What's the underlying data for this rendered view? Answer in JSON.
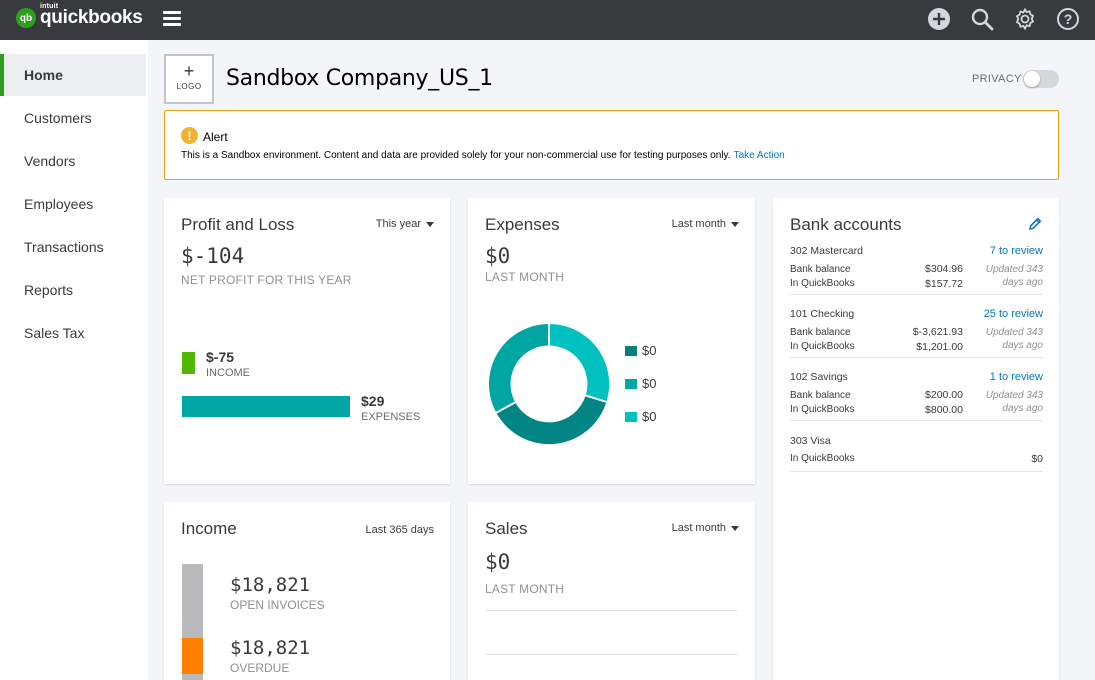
{
  "brand": {
    "badge": "qb",
    "intuit": "intuit",
    "name": "quickbooks"
  },
  "colors": {
    "topbar": "#393a3d",
    "brand_green": "#2ca01c",
    "teal": "#00a6a4",
    "link": "#0077c5",
    "alert_border": "#e8a317",
    "overdue": "#ff8000"
  },
  "topbar_icons": [
    "plus-circle-icon",
    "search-icon",
    "gear-icon",
    "help-icon"
  ],
  "sidebar": {
    "items": [
      {
        "label": "Home",
        "active": true
      },
      {
        "label": "Customers"
      },
      {
        "label": "Vendors"
      },
      {
        "label": "Employees"
      },
      {
        "label": "Transactions"
      },
      {
        "label": "Reports"
      },
      {
        "label": "Sales Tax"
      }
    ]
  },
  "header": {
    "logo_plus": "+",
    "logo_label": "LOGO",
    "company_name": "Sandbox Company_US_1",
    "privacy_label": "PRIVACY",
    "privacy_on": false
  },
  "alert": {
    "icon": "!",
    "title": "Alert",
    "message": "This is a Sandbox environment. Content and data are provided solely for your non-commercial use for testing purposes only.",
    "action": "Take Action"
  },
  "profit_loss": {
    "title": "Profit and Loss",
    "filter": "This year",
    "value": "$-104",
    "label": "NET PROFIT FOR THIS YEAR",
    "income_value": "$-75",
    "income_label": "INCOME",
    "expenses_value": "$29",
    "expenses_label": "EXPENSES"
  },
  "expenses": {
    "title": "Expenses",
    "filter": "Last month",
    "value": "$0",
    "label": "LAST MONTH",
    "legend": [
      {
        "value": "$0",
        "color": "#007f7e"
      },
      {
        "value": "$0",
        "color": "#00a6a4"
      },
      {
        "value": "$0",
        "color": "#00c1bf"
      }
    ]
  },
  "bank": {
    "title": "Bank accounts",
    "edit_icon": "pencil-icon",
    "accounts": [
      {
        "name": "302 Mastercard",
        "review": "7 to review",
        "bank_label": "Bank balance",
        "bank_amount": "$304.96",
        "qb_label": "In QuickBooks",
        "qb_amount": "$157.72",
        "updated": "Updated 343 days ago"
      },
      {
        "name": "101 Checking",
        "review": "25 to review",
        "bank_label": "Bank balance",
        "bank_amount": "$-3,621.93",
        "qb_label": "In QuickBooks",
        "qb_amount": "$1,201.00",
        "updated": "Updated 343 days ago"
      },
      {
        "name": "102 Savings",
        "review": "1 to review",
        "bank_label": "Bank balance",
        "bank_amount": "$200.00",
        "qb_label": "In QuickBooks",
        "qb_amount": "$800.00",
        "updated": "Updated 343 days ago"
      },
      {
        "name": "303 Visa",
        "qb_label": "In QuickBooks",
        "qb_amount": "$0"
      }
    ]
  },
  "income": {
    "title": "Income",
    "filter": "Last 365 days",
    "open_value": "$18,821",
    "open_label": "OPEN INVOICES",
    "overdue_value": "$18,821",
    "overdue_label": "OVERDUE"
  },
  "sales": {
    "title": "Sales",
    "filter": "Last month",
    "value": "$0",
    "label": "LAST MONTH"
  }
}
